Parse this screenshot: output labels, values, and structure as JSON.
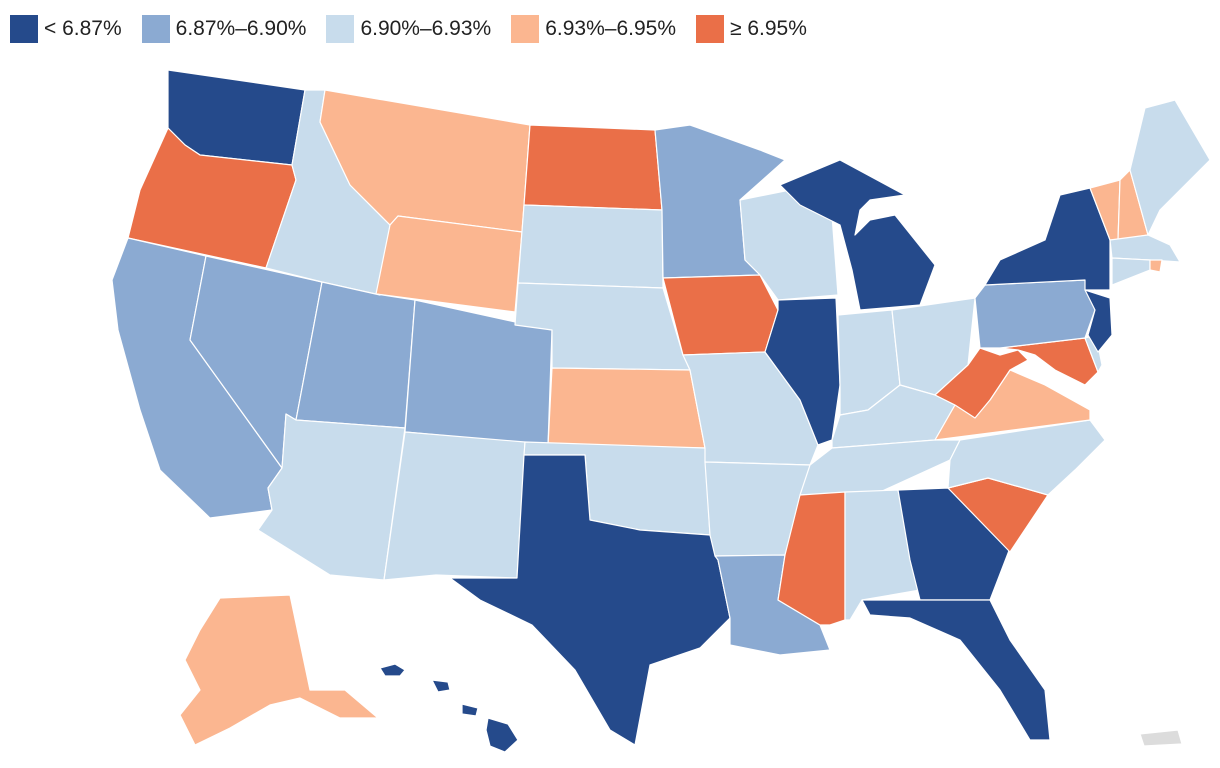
{
  "legend": [
    {
      "label": "< 6.87%",
      "color": "#254a8b",
      "bin": "a"
    },
    {
      "label": "6.87%–6.90%",
      "color": "#8baad2",
      "bin": "b"
    },
    {
      "label": "6.90%–6.93%",
      "color": "#c8dcec",
      "bin": "c"
    },
    {
      "label": "6.93%–6.95%",
      "color": "#fbb690",
      "bin": "d"
    },
    {
      "label": "≥ 6.95%",
      "color": "#ea6f48",
      "bin": "e"
    }
  ],
  "no_data_color": "#dcdcdc",
  "state_bins": {
    "WA": "a",
    "OR": "e",
    "CA": "b",
    "NV": "b",
    "ID": "c",
    "MT": "d",
    "WY": "d",
    "UT": "b",
    "AZ": "c",
    "CO": "b",
    "NM": "c",
    "ND": "e",
    "SD": "c",
    "NE": "c",
    "KS": "d",
    "OK": "c",
    "TX": "a",
    "MN": "b",
    "IA": "e",
    "MO": "c",
    "AR": "c",
    "LA": "b",
    "WI": "c",
    "IL": "a",
    "MI": "a",
    "IN": "c",
    "OH": "c",
    "KY": "c",
    "TN": "c",
    "MS": "e",
    "AL": "c",
    "GA": "a",
    "FL": "a",
    "SC": "e",
    "NC": "c",
    "VA": "d",
    "WV": "e",
    "MD": "e",
    "DE": "c",
    "PA": "b",
    "NJ": "a",
    "NY": "a",
    "CT": "c",
    "RI": "d",
    "MA": "c",
    "VT": "d",
    "NH": "d",
    "ME": "c",
    "AK": "d",
    "HI": "a",
    "PR": "none"
  }
}
